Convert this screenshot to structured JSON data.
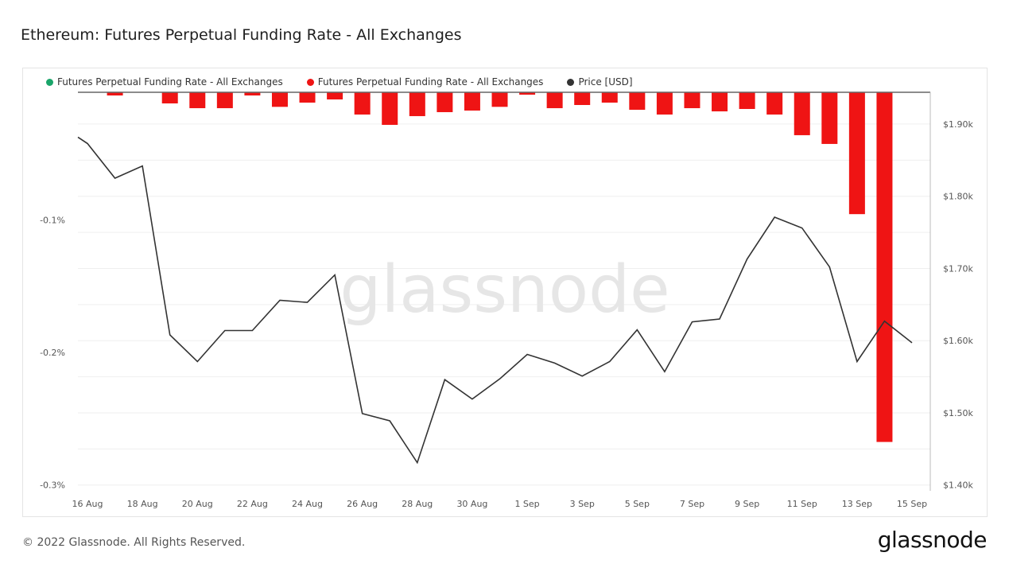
{
  "header": {
    "title": "Ethereum: Futures Perpetual Funding Rate - All Exchanges"
  },
  "footer": {
    "copyright": "© 2022 Glassnode. All Rights Reserved.",
    "logo": "glassnode",
    "watermark": "glassnode"
  },
  "colors": {
    "positive": "#1aa56a",
    "negative": "#ef1414",
    "price": "#333333"
  },
  "chart_data": {
    "type": "bar+line",
    "title": "Ethereum: Futures Perpetual Funding Rate - All Exchanges",
    "legend": [
      {
        "label": "Futures Perpetual Funding Rate - All Exchanges",
        "color": "#1aa56a"
      },
      {
        "label": "Futures Perpetual Funding Rate - All Exchanges",
        "color": "#ef1414"
      },
      {
        "label": "Price [USD]",
        "color": "#333333"
      }
    ],
    "legend_placement": "top-left",
    "x_ticks": [
      "16 Aug",
      "18 Aug",
      "20 Aug",
      "22 Aug",
      "24 Aug",
      "26 Aug",
      "28 Aug",
      "30 Aug",
      "1 Sep",
      "3 Sep",
      "5 Sep",
      "7 Sep",
      "9 Sep",
      "11 Sep",
      "13 Sep",
      "15 Sep"
    ],
    "dates": [
      "16 Aug",
      "17 Aug",
      "18 Aug",
      "19 Aug",
      "20 Aug",
      "21 Aug",
      "22 Aug",
      "23 Aug",
      "24 Aug",
      "25 Aug",
      "26 Aug",
      "27 Aug",
      "28 Aug",
      "29 Aug",
      "30 Aug",
      "31 Aug",
      "1 Sep",
      "2 Sep",
      "3 Sep",
      "4 Sep",
      "5 Sep",
      "6 Sep",
      "7 Sep",
      "8 Sep",
      "9 Sep",
      "10 Sep",
      "11 Sep",
      "12 Sep",
      "13 Sep",
      "14 Sep",
      "15 Sep"
    ],
    "funding_rate_pct": [
      0,
      -0.0024,
      0,
      -0.0084,
      -0.012,
      -0.012,
      -0.0024,
      -0.011,
      -0.0078,
      -0.0054,
      -0.0168,
      -0.0246,
      -0.018,
      -0.015,
      -0.0138,
      -0.011,
      -0.0018,
      -0.012,
      -0.0096,
      -0.0078,
      -0.0132,
      -0.0168,
      -0.012,
      -0.0144,
      -0.0126,
      -0.0168,
      -0.0324,
      -0.039,
      -0.092,
      -0.264,
      0
    ],
    "price_usd": [
      1873,
      1825,
      1842,
      1608,
      1571,
      1614,
      1614,
      1656,
      1653,
      1691,
      1499,
      1489,
      1431,
      1546,
      1519,
      1547,
      1581,
      1569,
      1551,
      1571,
      1615,
      1557,
      1626,
      1630,
      1713,
      1771,
      1756,
      1702,
      1571,
      1627,
      1597
    ],
    "left_axis": {
      "ticks": [
        -0.1,
        -0.2,
        -0.3
      ],
      "tick_labels": [
        "-0.1%",
        "-0.2%",
        "-0.3%"
      ],
      "ylim": [
        -0.3,
        0
      ]
    },
    "right_axis": {
      "ticks": [
        1400,
        1500,
        1600,
        1700,
        1800,
        1900
      ],
      "tick_labels": [
        "$1.40k",
        "$1.50k",
        "$1.60k",
        "$1.70k",
        "$1.80k",
        "$1.90k"
      ],
      "ylim": [
        1392,
        1944
      ]
    },
    "grid": true
  }
}
